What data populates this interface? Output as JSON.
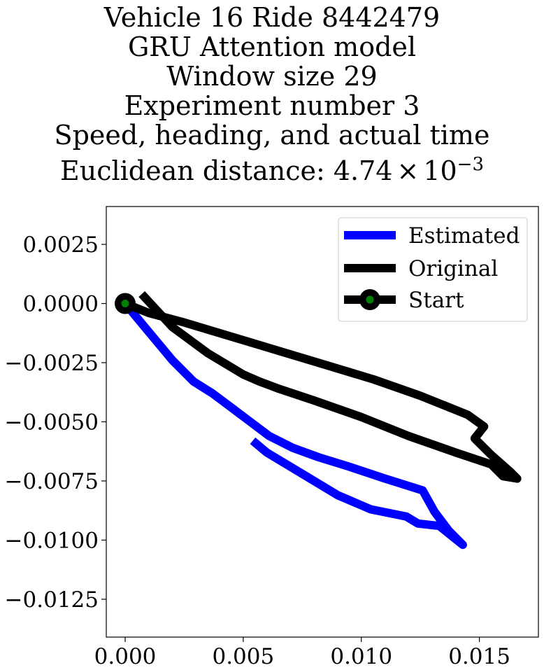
{
  "chart_data": {
    "type": "line",
    "title_lines": [
      "Vehicle 16 Ride 8442479",
      "GRU Attention model",
      "Window size 29",
      "Experiment number 3",
      "Speed, heading, and actual time"
    ],
    "title_distance_prefix": "Euclidean distance: ",
    "title_distance_mantissa": "4.74",
    "title_distance_times": "×",
    "title_distance_base": "10",
    "title_distance_exponent": "−3",
    "xlabel": "",
    "ylabel": "",
    "xlim": [
      -0.0008,
      0.0175
    ],
    "ylim": [
      -0.0141,
      0.0041
    ],
    "x_ticks": [
      {
        "value": 0.0,
        "label": "0.000"
      },
      {
        "value": 0.005,
        "label": "0.005"
      },
      {
        "value": 0.01,
        "label": "0.010"
      },
      {
        "value": 0.015,
        "label": "0.015"
      }
    ],
    "y_ticks": [
      {
        "value": 0.0025,
        "label": "0.0025"
      },
      {
        "value": 0.0,
        "label": "0.0000"
      },
      {
        "value": -0.0025,
        "label": "−0.0025"
      },
      {
        "value": -0.005,
        "label": "−0.0050"
      },
      {
        "value": -0.0075,
        "label": "−0.0075"
      },
      {
        "value": -0.01,
        "label": "−0.0100"
      },
      {
        "value": -0.0125,
        "label": "−0.0125"
      }
    ],
    "grid": false,
    "legend_position": "top-right",
    "series": [
      {
        "name": "Estimated",
        "color": "#0000ff",
        "points": [
          [
            0.0,
            0.0
          ],
          [
            0.001,
            -0.0012
          ],
          [
            0.002,
            -0.0024
          ],
          [
            0.0029,
            -0.0033
          ],
          [
            0.0037,
            -0.0038
          ],
          [
            0.0045,
            -0.0044
          ],
          [
            0.0053,
            -0.005
          ],
          [
            0.0061,
            -0.0056
          ],
          [
            0.0071,
            -0.0061
          ],
          [
            0.0082,
            -0.0065
          ],
          [
            0.0095,
            -0.0069
          ],
          [
            0.011,
            -0.0074
          ],
          [
            0.0126,
            -0.0079
          ],
          [
            0.0131,
            -0.0088
          ],
          [
            0.0137,
            -0.0096
          ],
          [
            0.0143,
            -0.0102
          ],
          [
            0.0133,
            -0.0094
          ],
          [
            0.0124,
            -0.0093
          ],
          [
            0.0119,
            -0.009
          ],
          [
            0.0104,
            -0.0087
          ],
          [
            0.009,
            -0.0081
          ],
          [
            0.0075,
            -0.0072
          ],
          [
            0.006,
            -0.0063
          ],
          [
            0.0054,
            -0.0058
          ]
        ]
      },
      {
        "name": "Original",
        "color": "#000000",
        "points": [
          [
            0.0,
            0.0
          ],
          [
            0.001,
            -0.0004
          ],
          [
            0.0025,
            -0.0008
          ],
          [
            0.0045,
            -0.0014
          ],
          [
            0.0065,
            -0.002
          ],
          [
            0.0085,
            -0.0026
          ],
          [
            0.0105,
            -0.0032
          ],
          [
            0.0125,
            -0.0039
          ],
          [
            0.0145,
            -0.0047
          ],
          [
            0.0152,
            -0.0052
          ],
          [
            0.0148,
            -0.0057
          ],
          [
            0.0155,
            -0.0064
          ],
          [
            0.0163,
            -0.0071
          ],
          [
            0.0166,
            -0.0074
          ],
          [
            0.016,
            -0.0073
          ],
          [
            0.0155,
            -0.0068
          ],
          [
            0.014,
            -0.0063
          ],
          [
            0.012,
            -0.0056
          ],
          [
            0.01,
            -0.0048
          ],
          [
            0.008,
            -0.0041
          ],
          [
            0.0065,
            -0.0036
          ],
          [
            0.0057,
            -0.0033
          ],
          [
            0.005,
            -0.003
          ],
          [
            0.0035,
            -0.0021
          ],
          [
            0.002,
            -0.001
          ],
          [
            0.0007,
            0.0004
          ]
        ]
      }
    ],
    "start": {
      "name": "Start",
      "x": 0.0,
      "y": 0.0,
      "marker_color": "#008000",
      "marker_edge": "#000000"
    }
  }
}
